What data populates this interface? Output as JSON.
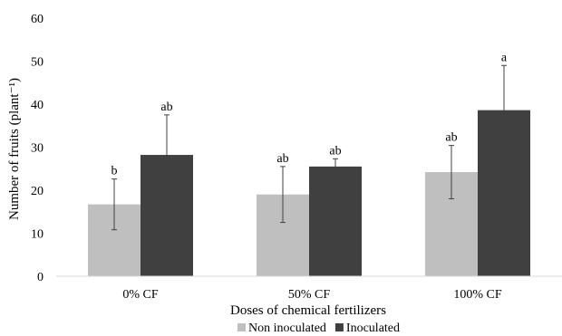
{
  "chart_data": {
    "type": "bar",
    "title": "",
    "xlabel": "Doses of chemical fertilizers",
    "ylabel": "Number of fruits (plant⁻¹)",
    "ylim": [
      0,
      60
    ],
    "yticks": [
      0,
      10,
      20,
      30,
      40,
      50,
      60
    ],
    "grid": false,
    "legend_position": "bottom",
    "categories": [
      "0% CF",
      "50% CF",
      "100% CF"
    ],
    "series": [
      {
        "name": "Non inoculated",
        "color": "#bfbfbf",
        "values": [
          16.7,
          19.0,
          24.2
        ],
        "errors": [
          5.9,
          6.5,
          6.2
        ],
        "labels": [
          "b",
          "ab",
          "ab"
        ]
      },
      {
        "name": "Inoculated",
        "color": "#404040",
        "values": [
          28.2,
          25.5,
          38.6
        ],
        "errors": [
          9.3,
          1.8,
          10.4
        ],
        "labels": [
          "ab",
          "ab",
          "a"
        ]
      }
    ]
  }
}
